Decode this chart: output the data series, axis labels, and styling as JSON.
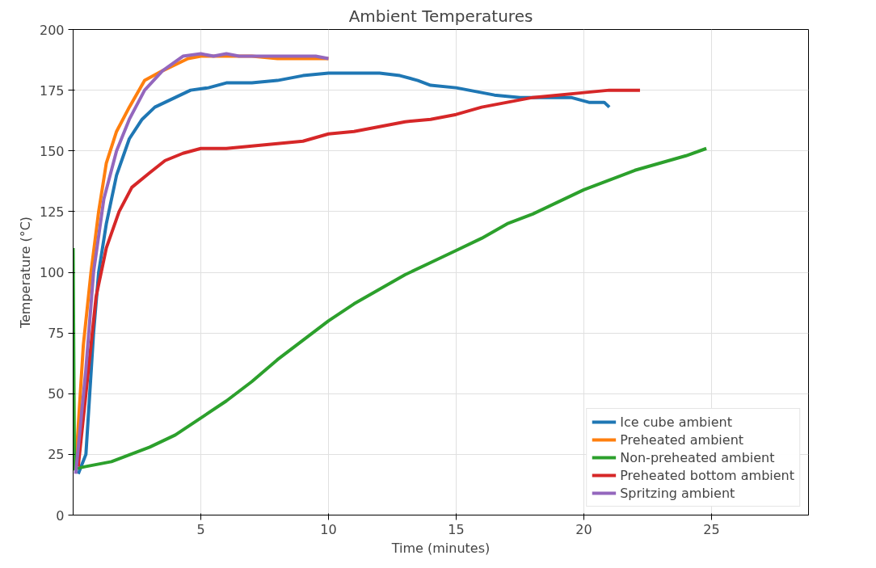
{
  "chart_data": {
    "type": "line",
    "title": "Ambient Temperatures",
    "xlabel": "Time (minutes)",
    "ylabel": "Temperature (°C)",
    "xlim": [
      0,
      28.8
    ],
    "ylim": [
      0,
      200
    ],
    "xticks": [
      5,
      10,
      15,
      20,
      25
    ],
    "yticks": [
      0,
      25,
      50,
      75,
      100,
      125,
      150,
      175,
      200
    ],
    "grid": true,
    "legend": "bottom right",
    "line_style": "solid",
    "series": [
      {
        "name": "Ice cube ambient",
        "color": "#1f77b4",
        "x": [
          0.2,
          0.5,
          0.8,
          1.0,
          1.3,
          1.7,
          2.2,
          2.7,
          3.2,
          4,
          4.6,
          5.3,
          6,
          7,
          8,
          9,
          10,
          11,
          12,
          12.8,
          13.5,
          14,
          15,
          15.5,
          16.5,
          17.5,
          18.5,
          19.5,
          20.2,
          20.8,
          21
        ],
        "values": [
          17,
          25,
          75,
          100,
          120,
          140,
          155,
          163,
          168,
          172,
          175,
          176,
          178,
          178,
          179,
          181,
          182,
          182,
          182,
          181,
          179,
          177,
          176,
          175,
          173,
          172,
          172,
          172,
          170,
          170,
          168
        ]
      },
      {
        "name": "Preheated ambient",
        "color": "#ff7f0e",
        "x": [
          0.1,
          0.4,
          0.7,
          1,
          1.3,
          1.7,
          2.2,
          2.8,
          3.5,
          4.5,
          5,
          6,
          7,
          8,
          9,
          10
        ],
        "values": [
          20,
          70,
          100,
          125,
          145,
          158,
          168,
          179,
          183,
          188,
          189,
          189,
          189,
          188,
          188,
          188
        ]
      },
      {
        "name": "Non-preheated ambient",
        "color": "#2ca02c",
        "x": [
          0,
          0.05,
          0.5,
          1,
          1.5,
          2,
          3,
          4,
          5,
          6,
          7,
          8,
          9,
          10,
          11,
          12,
          13,
          14,
          15,
          16,
          17,
          18,
          19,
          20,
          21,
          22,
          23,
          24,
          24.8
        ],
        "values": [
          110,
          19,
          20,
          21,
          22,
          24,
          28,
          33,
          40,
          47,
          55,
          64,
          72,
          80,
          87,
          93,
          99,
          104,
          109,
          114,
          120,
          124,
          129,
          134,
          138,
          142,
          145,
          148,
          151
        ]
      },
      {
        "name": "Preheated bottom ambient",
        "color": "#d62728",
        "x": [
          0.2,
          0.6,
          0.9,
          1.3,
          1.8,
          2.3,
          3,
          3.6,
          4.3,
          5,
          6,
          7,
          8,
          9,
          10,
          11,
          12,
          13,
          14,
          15,
          16,
          17,
          18,
          19,
          20,
          21,
          21.5,
          22.2
        ],
        "values": [
          20,
          60,
          90,
          110,
          125,
          135,
          141,
          146,
          149,
          151,
          151,
          152,
          153,
          154,
          157,
          158,
          160,
          162,
          163,
          165,
          168,
          170,
          172,
          173,
          174,
          175,
          175,
          175
        ]
      },
      {
        "name": "Spritzing ambient",
        "color": "#9467bd",
        "x": [
          0.1,
          0.5,
          0.8,
          1.2,
          1.7,
          2.2,
          2.8,
          3.5,
          4.3,
          5,
          5.5,
          6,
          6.5,
          7.5,
          8.5,
          9.5,
          10
        ],
        "values": [
          17,
          60,
          100,
          130,
          150,
          163,
          175,
          183,
          189,
          190,
          189,
          190,
          189,
          189,
          189,
          189,
          188
        ]
      }
    ]
  }
}
